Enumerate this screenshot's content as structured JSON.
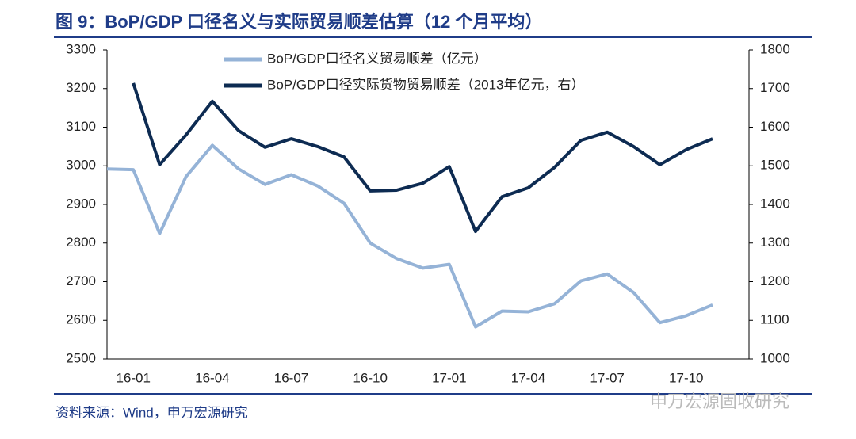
{
  "title": "图 9：BoP/GDP 口径名义与实际贸易顺差估算（12 个月平均）",
  "source": "资料来源：Wind，申万宏源研究",
  "watermark": "申万宏源固收研究",
  "chart_data": {
    "type": "line",
    "categories": [
      null,
      "16-01",
      null,
      null,
      "16-04",
      null,
      null,
      "16-07",
      null,
      null,
      "16-10",
      null,
      null,
      "17-01",
      null,
      null,
      "17-04",
      null,
      null,
      "17-07",
      null,
      null,
      "17-10",
      null
    ],
    "series": [
      {
        "name": "BoP/GDP口径名义贸易顺差（亿元）",
        "color": "#95b3d7",
        "values": [
          2992,
          2990,
          2825,
          2972,
          3053,
          2992,
          2952,
          2977,
          2948,
          2903,
          2800,
          2760,
          2735,
          2745,
          2583,
          2624,
          2622,
          2643,
          2702,
          2720,
          2672,
          2594,
          2612,
          2640
        ]
      },
      {
        "name": "BoP/GDP口径实际货物贸易顺差（2013年亿元，右）",
        "color": "#0d2b52",
        "axis": "y2",
        "values": [
          null,
          1714,
          1503,
          1580,
          1667,
          1591,
          1548,
          1570,
          1550,
          1523,
          1435,
          1437,
          1455,
          1498,
          1330,
          1420,
          1443,
          1496,
          1566,
          1587,
          1550,
          1503,
          1542,
          1570
        ]
      }
    ],
    "ylim": [
      2500,
      3300
    ],
    "yticks": [
      2500,
      2600,
      2700,
      2800,
      2900,
      3000,
      3100,
      3200,
      3300
    ],
    "y2lim": [
      1000,
      1800
    ],
    "y2ticks": [
      1000,
      1100,
      1200,
      1300,
      1400,
      1500,
      1600,
      1700,
      1800
    ]
  }
}
